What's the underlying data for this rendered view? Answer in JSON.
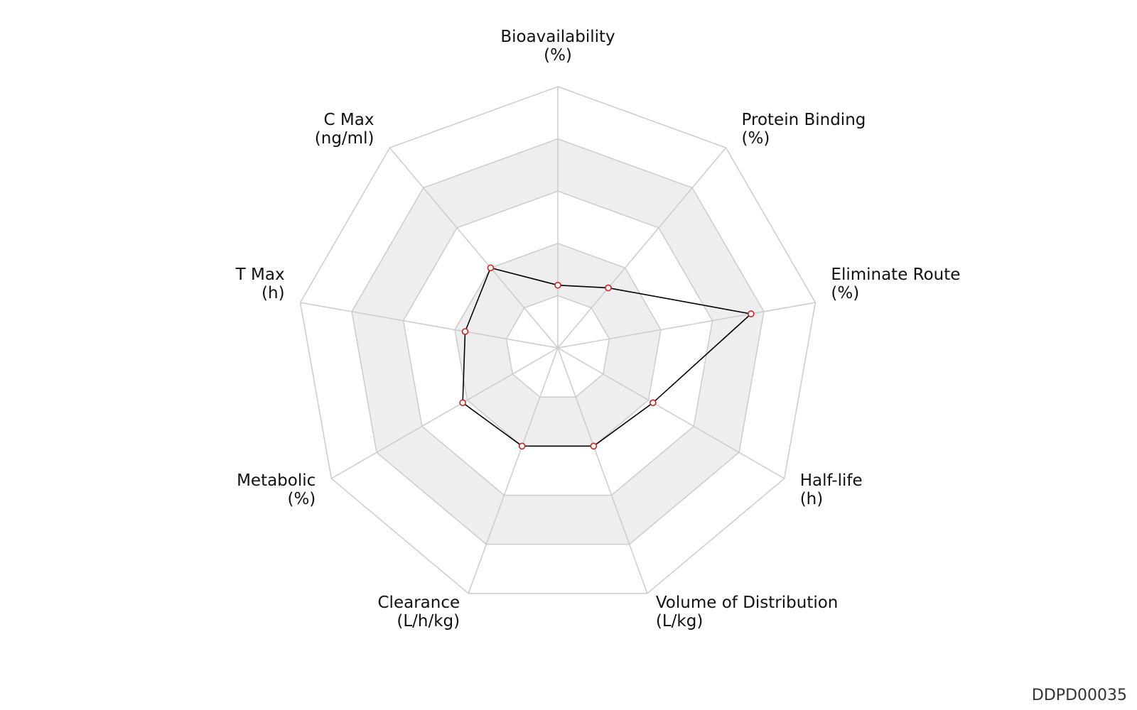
{
  "chart_data": {
    "type": "radar",
    "axes": [
      {
        "name": "Bioavailability",
        "unit": "(%)"
      },
      {
        "name": "Protein Binding",
        "unit": "(%)"
      },
      {
        "name": "Eliminate Route",
        "unit": "(%)"
      },
      {
        "name": "Half-life",
        "unit": "(h)"
      },
      {
        "name": "Volume of Distribution",
        "unit": "(L/kg)"
      },
      {
        "name": "Clearance",
        "unit": "(L/h/kg)"
      },
      {
        "name": "Metabolic",
        "unit": "(%)"
      },
      {
        "name": "T Max",
        "unit": "(h)"
      },
      {
        "name": "C Max",
        "unit": "(ng/ml)"
      }
    ],
    "levels": 5,
    "range": [
      0,
      1
    ],
    "values": [
      0.24,
      0.3,
      0.75,
      0.42,
      0.4,
      0.4,
      0.42,
      0.36,
      0.4
    ],
    "colors": {
      "line": "#000000",
      "marker": "#cc2222",
      "band": "#eeeeee",
      "grid": "#cccccc"
    }
  },
  "footer": {
    "id": "DDPD00035"
  }
}
